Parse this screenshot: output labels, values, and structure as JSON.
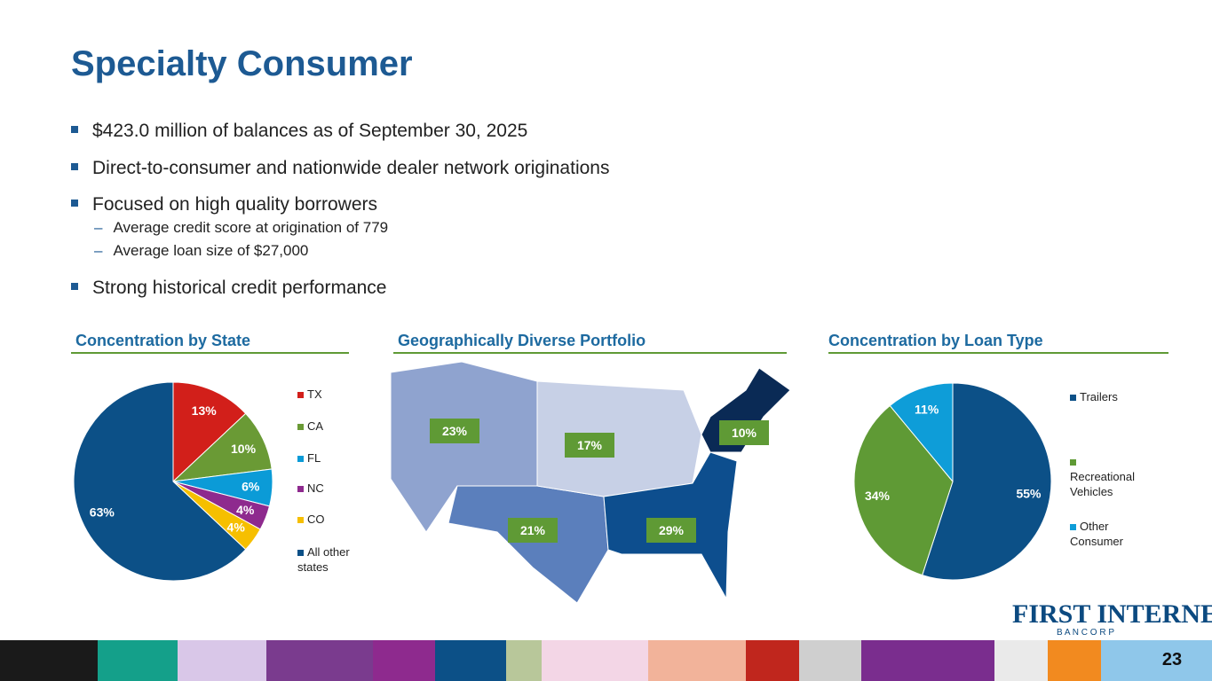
{
  "title": "Specialty Consumer",
  "bullets": [
    {
      "text": "$423.0 million of balances as of September 30, 2025"
    },
    {
      "text": "Direct-to-consumer and nationwide dealer network originations"
    },
    {
      "text": "Focused on high quality borrowers",
      "sub": [
        "Average credit score at origination of 779",
        "Average loan size of $27,000"
      ]
    },
    {
      "text": "Strong historical credit performance"
    }
  ],
  "map": {
    "title": "Geographically Diverse Portfolio",
    "labels": [
      "23%",
      "17%",
      "10%",
      "21%",
      "29%"
    ]
  },
  "chart_data": [
    {
      "type": "pie",
      "title": "Concentration by State",
      "categories": [
        "TX",
        "CA",
        "FL",
        "NC",
        "CO",
        "All other states"
      ],
      "values": [
        13,
        10,
        6,
        4,
        4,
        63
      ],
      "value_labels": [
        "13%",
        "10%",
        "6%",
        "4%",
        "4%",
        "63%"
      ],
      "colors": [
        "#d21f1a",
        "#6a9a35",
        "#0b9bd7",
        "#8e2a8e",
        "#f6bf00",
        "#0c5087"
      ]
    },
    {
      "type": "pie",
      "title": "Concentration by Loan Type",
      "categories": [
        "Trailers",
        "Recreational Vehicles",
        "Other Consumer"
      ],
      "values": [
        55,
        34,
        11
      ],
      "value_labels": [
        "55%",
        "34%",
        "11%"
      ],
      "colors": [
        "#0c5087",
        "#5f9a35",
        "#0e9dd8"
      ]
    }
  ],
  "logo": {
    "name": "FIRST INTERNET",
    "sub": "B A N C O R P"
  },
  "page_number": "23"
}
